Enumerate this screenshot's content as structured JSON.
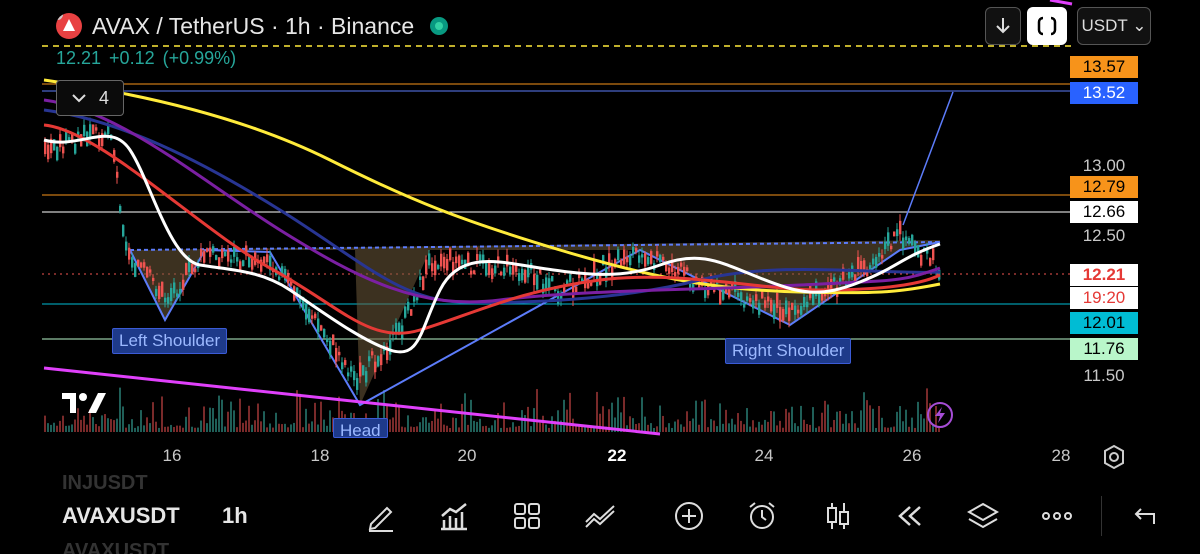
{
  "header": {
    "title": "AVAX / TetherUS · 1h · Binance",
    "price": "12.21",
    "change": "+0.12",
    "change_pct": "(+0.99%)",
    "currency": "USDT ⌄",
    "indicator_toggle": "4"
  },
  "price_axis": {
    "ticks": [
      "13.00",
      "12.50",
      "11.50"
    ],
    "labels": [
      {
        "text": "13.57",
        "bg": "#f7931a",
        "fg": "#000000"
      },
      {
        "text": "13.52",
        "bg": "#2962ff",
        "fg": "#ffffff"
      },
      {
        "text": "12.79",
        "bg": "#f7931a",
        "fg": "#000000"
      },
      {
        "text": "12.66",
        "bg": "#ffffff",
        "fg": "#000000"
      },
      {
        "text": "12.21",
        "bg": "#ffffff",
        "fg": "#e53935"
      },
      {
        "text": "19:20",
        "bg": "#ffffff",
        "fg": "#e53935"
      },
      {
        "text": "12.01",
        "bg": "#00bcd4",
        "fg": "#000000"
      },
      {
        "text": "11.76",
        "bg": "#b9f6ca",
        "fg": "#000000"
      }
    ]
  },
  "time_axis": {
    "ticks": [
      {
        "label": "16",
        "bold": false
      },
      {
        "label": "18",
        "bold": false
      },
      {
        "label": "20",
        "bold": false
      },
      {
        "label": "22",
        "bold": true
      },
      {
        "label": "24",
        "bold": false
      },
      {
        "label": "26",
        "bold": false
      },
      {
        "label": "28",
        "bold": false
      }
    ]
  },
  "annotations": {
    "left_shoulder": "Left Shoulder",
    "head": "Head",
    "right_shoulder": "Right Shoulder"
  },
  "bottom_bar": {
    "symbol": "AVAXUSDT",
    "symbol_prev": "INJUSDT",
    "symbol_next": "AVAXUSDT",
    "timeframe": "1h",
    "tools": [
      "draw-icon",
      "indicators-icon",
      "layout-icon",
      "compare-icon",
      "add-icon",
      "alert-icon",
      "chart-type-icon",
      "replay-icon",
      "layers-icon",
      "more-icon",
      "back-icon"
    ]
  },
  "colors": {
    "background": "#000000",
    "bull": "#26a69a",
    "bear": "#ef5350",
    "ma_white": "#ffffff",
    "ma_yellow": "#ffeb3b",
    "ma_red": "#e53935",
    "ma_blue": "#283593",
    "ma_purple": "#7b1fa2",
    "trend_magenta": "#e040fb",
    "pattern_fill": "#6d5a3a"
  }
}
